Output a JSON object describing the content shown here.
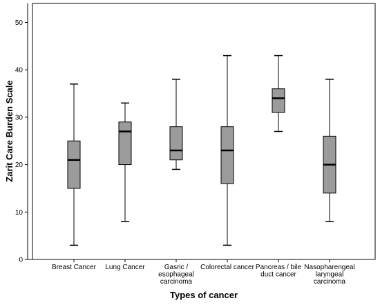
{
  "chart_data": {
    "type": "box",
    "xlabel": "Types of cancer",
    "ylabel": "Zarit Care Burden Scale",
    "ylim": [
      0,
      54
    ],
    "yticks": [
      0,
      10,
      20,
      30,
      40,
      50
    ],
    "grid": false,
    "box_color": "#9b9b9b",
    "categories": [
      {
        "label_lines": [
          "Breast Cancer"
        ],
        "min": 3,
        "q1": 15,
        "median": 21,
        "q3": 25,
        "max": 37
      },
      {
        "label_lines": [
          "Lung Cancer"
        ],
        "min": 8,
        "q1": 20,
        "median": 27,
        "q3": 29,
        "max": 33
      },
      {
        "label_lines": [
          "Gasric /",
          "esophageal",
          "carcinoma"
        ],
        "min": 19,
        "q1": 21,
        "median": 23,
        "q3": 28,
        "max": 38
      },
      {
        "label_lines": [
          "Colorectal cancer"
        ],
        "min": 3,
        "q1": 16,
        "median": 23,
        "q3": 28,
        "max": 43
      },
      {
        "label_lines": [
          "Pancreas / bile",
          "duct cancer"
        ],
        "min": 27,
        "q1": 31,
        "median": 34,
        "q3": 36,
        "max": 43
      },
      {
        "label_lines": [
          "Nasopharengeal",
          "laryngeal",
          "carcinoma"
        ],
        "min": 8,
        "q1": 14,
        "median": 20,
        "q3": 26,
        "max": 38
      }
    ]
  }
}
